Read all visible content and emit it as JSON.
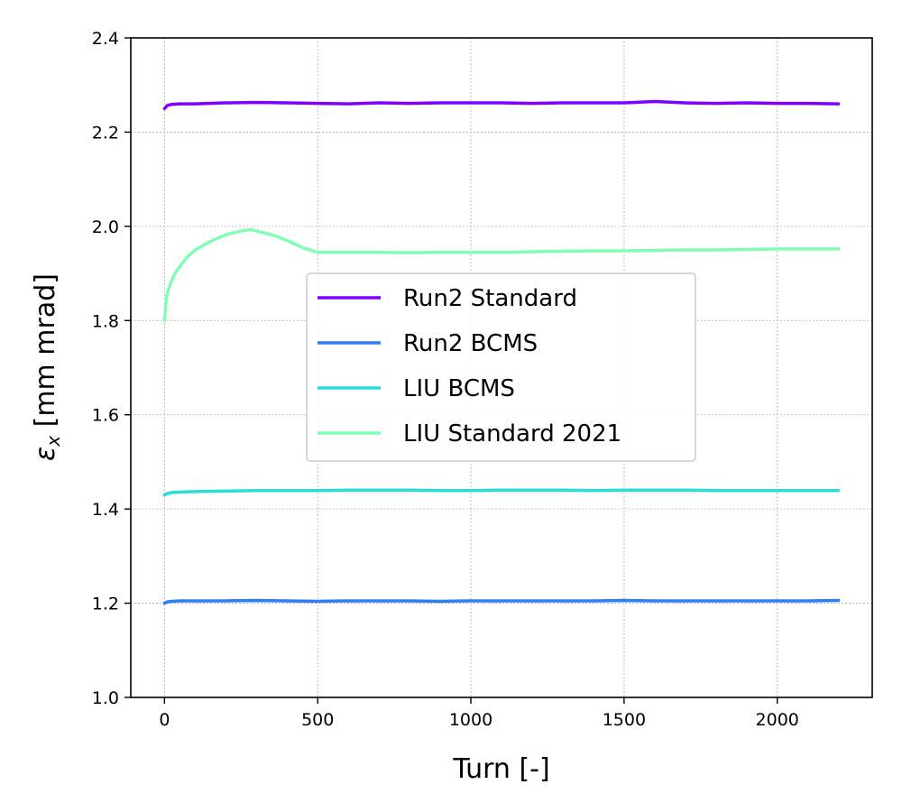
{
  "chart_data": {
    "type": "line",
    "title": "",
    "xlabel": "Turn [-]",
    "ylabel_symbol": "ε",
    "ylabel_subscript": "x",
    "ylabel_unit": " [mm mrad]",
    "xlim": [
      -110,
      2310
    ],
    "ylim": [
      1.0,
      2.4
    ],
    "xticks": [
      0,
      500,
      1000,
      1500,
      2000
    ],
    "yticks": [
      1.0,
      1.2,
      1.4,
      1.6,
      1.8,
      2.0,
      2.2,
      2.4
    ],
    "grid": true,
    "legend_position": "center",
    "series": [
      {
        "name": "Run2 Standard",
        "color": "#8000ff",
        "x": [
          0,
          10,
          25,
          50,
          100,
          200,
          300,
          400,
          500,
          600,
          700,
          800,
          900,
          1000,
          1100,
          1200,
          1300,
          1400,
          1500,
          1600,
          1700,
          1800,
          1900,
          2000,
          2100,
          2200
        ],
        "y": [
          2.25,
          2.257,
          2.259,
          2.26,
          2.26,
          2.262,
          2.263,
          2.262,
          2.261,
          2.26,
          2.262,
          2.261,
          2.262,
          2.262,
          2.262,
          2.261,
          2.262,
          2.262,
          2.262,
          2.265,
          2.262,
          2.261,
          2.262,
          2.261,
          2.261,
          2.26
        ]
      },
      {
        "name": "Run2 BCMS",
        "color": "#2c7ef7",
        "x": [
          0,
          10,
          25,
          50,
          100,
          200,
          300,
          400,
          500,
          600,
          700,
          800,
          900,
          1000,
          1100,
          1200,
          1300,
          1400,
          1500,
          1600,
          1700,
          1800,
          1900,
          2000,
          2100,
          2200
        ],
        "y": [
          1.2,
          1.203,
          1.204,
          1.205,
          1.205,
          1.205,
          1.206,
          1.205,
          1.204,
          1.205,
          1.205,
          1.205,
          1.204,
          1.205,
          1.205,
          1.205,
          1.205,
          1.205,
          1.206,
          1.205,
          1.205,
          1.205,
          1.205,
          1.205,
          1.205,
          1.206
        ]
      },
      {
        "name": "LIU BCMS",
        "color": "#2adddd",
        "x": [
          0,
          10,
          25,
          50,
          100,
          200,
          300,
          400,
          500,
          600,
          700,
          800,
          900,
          1000,
          1100,
          1200,
          1300,
          1400,
          1500,
          1600,
          1700,
          1800,
          1900,
          2000,
          2100,
          2200
        ],
        "y": [
          1.43,
          1.433,
          1.435,
          1.436,
          1.437,
          1.438,
          1.439,
          1.439,
          1.439,
          1.44,
          1.44,
          1.44,
          1.439,
          1.439,
          1.44,
          1.44,
          1.44,
          1.439,
          1.44,
          1.44,
          1.44,
          1.439,
          1.439,
          1.439,
          1.439,
          1.439
        ]
      },
      {
        "name": "LIU Standard 2021",
        "color": "#80ffb4",
        "x": [
          0,
          5,
          10,
          20,
          30,
          50,
          75,
          100,
          150,
          200,
          250,
          280,
          300,
          350,
          400,
          450,
          500,
          520,
          600,
          700,
          800,
          900,
          1000,
          1100,
          1200,
          1300,
          1400,
          1500,
          1600,
          1700,
          1800,
          1900,
          2000,
          2100,
          2200
        ],
        "y": [
          1.8,
          1.84,
          1.86,
          1.88,
          1.895,
          1.915,
          1.935,
          1.95,
          1.968,
          1.982,
          1.99,
          1.993,
          1.99,
          1.982,
          1.97,
          1.955,
          1.945,
          1.945,
          1.945,
          1.945,
          1.944,
          1.945,
          1.945,
          1.945,
          1.946,
          1.947,
          1.948,
          1.948,
          1.949,
          1.95,
          1.95,
          1.951,
          1.952,
          1.952,
          1.952
        ]
      }
    ]
  }
}
